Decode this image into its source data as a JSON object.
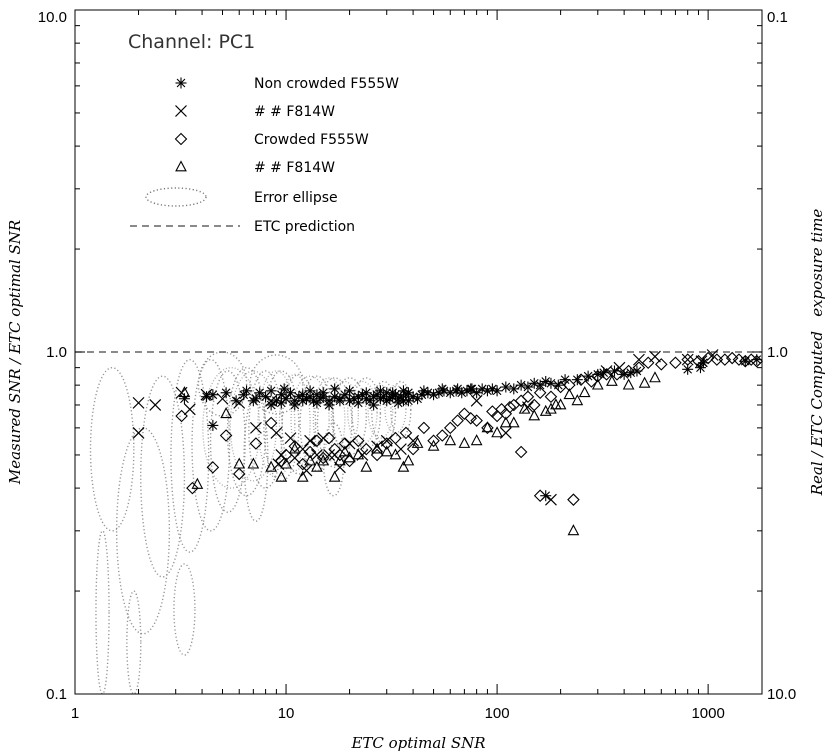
{
  "chart_data": {
    "type": "scatter",
    "title": "Channel: PC1",
    "xlabel": "ETC optimal SNR",
    "ylabel": "Measured SNR / ETC optimal SNR",
    "y2label": "Real / ETC Computed   exposure time",
    "xscale": "log",
    "yscale": "log",
    "xlim": [
      1,
      1800
    ],
    "ylim": [
      0.1,
      10
    ],
    "y2lim": [
      10.0,
      0.1
    ],
    "x_tick_labels": [
      "1",
      "10",
      "100",
      "1000"
    ],
    "y_tick_labels": [
      "0.1",
      "1.0",
      "10.0"
    ],
    "y2_tick_labels": [
      "10.0",
      "1.0",
      "0.1"
    ],
    "grid": false,
    "legend_position": "top-left",
    "legend": [
      {
        "symbol": "asterisk",
        "text": "Non crowded F555W"
      },
      {
        "symbol": "cross",
        "text": "#   #        F814W"
      },
      {
        "symbol": "diamond",
        "text": "Crowded         F555W"
      },
      {
        "symbol": "triangle",
        "text": "#   #        F814W"
      },
      {
        "symbol": "ellipse",
        "text": "Error ellipse"
      },
      {
        "symbol": "dashed",
        "text": "ETC prediction"
      }
    ],
    "reference_line": {
      "y": 1.0,
      "style": "dashed"
    },
    "series": [
      {
        "symbol": "asterisk",
        "x": [
          3.3,
          4.2,
          4.5,
          5.2,
          5.8,
          6.3,
          7,
          7.5,
          8,
          8.5,
          9,
          9.5,
          10,
          10.5,
          11,
          11.5,
          12,
          12.5,
          13,
          13.5,
          14,
          14.5,
          15,
          16,
          17,
          18,
          19,
          20,
          21,
          22,
          23,
          24,
          25,
          26,
          27,
          28,
          29,
          30,
          31,
          32,
          33,
          34,
          35,
          36,
          37,
          38,
          40,
          42,
          44,
          47,
          50,
          53,
          56,
          60,
          64,
          68,
          72,
          76,
          80,
          85,
          90,
          95,
          100,
          110,
          120,
          130,
          140,
          150,
          160,
          170,
          180,
          195,
          210,
          240,
          270,
          300,
          320,
          360,
          400,
          430,
          460,
          800,
          920,
          950,
          1500,
          1700,
          8.5,
          9.5,
          11,
          12,
          14,
          16,
          18,
          22,
          26,
          30,
          34,
          38,
          4.5,
          6.5,
          7.2,
          9.8,
          13,
          15,
          17,
          20,
          24,
          28,
          32,
          36,
          45,
          55,
          65,
          75,
          170
        ],
        "y": [
          0.73,
          0.74,
          0.61,
          0.76,
          0.72,
          0.75,
          0.72,
          0.76,
          0.74,
          0.77,
          0.72,
          0.75,
          0.73,
          0.76,
          0.72,
          0.74,
          0.75,
          0.73,
          0.74,
          0.72,
          0.75,
          0.73,
          0.74,
          0.72,
          0.74,
          0.73,
          0.75,
          0.72,
          0.73,
          0.74,
          0.75,
          0.73,
          0.72,
          0.74,
          0.75,
          0.73,
          0.74,
          0.76,
          0.73,
          0.74,
          0.75,
          0.73,
          0.74,
          0.72,
          0.75,
          0.76,
          0.74,
          0.73,
          0.75,
          0.76,
          0.75,
          0.76,
          0.77,
          0.76,
          0.77,
          0.76,
          0.77,
          0.78,
          0.76,
          0.78,
          0.77,
          0.78,
          0.77,
          0.79,
          0.78,
          0.8,
          0.79,
          0.81,
          0.8,
          0.82,
          0.81,
          0.8,
          0.83,
          0.83,
          0.85,
          0.86,
          0.87,
          0.88,
          0.86,
          0.87,
          0.88,
          0.89,
          0.9,
          0.93,
          0.94,
          0.95,
          0.7,
          0.71,
          0.7,
          0.72,
          0.71,
          0.7,
          0.72,
          0.71,
          0.7,
          0.72,
          0.71,
          0.72,
          0.75,
          0.77,
          0.73,
          0.78,
          0.77,
          0.76,
          0.78,
          0.77,
          0.76,
          0.77,
          0.76,
          0.77,
          0.77,
          0.78,
          0.78,
          0.78,
          0.38
        ]
      },
      {
        "symbol": "cross",
        "x": [
          2.0,
          2.0,
          2.4,
          3.2,
          3.5,
          4.2,
          5.0,
          6.0,
          7.2,
          8.5,
          9.0,
          9.5,
          10,
          10.5,
          11,
          12,
          13,
          14,
          15,
          17,
          20,
          23,
          27,
          30,
          35,
          40,
          80,
          110,
          140,
          180,
          330,
          380,
          470,
          560,
          800,
          930,
          1050,
          18,
          9.2,
          12.5,
          16
        ],
        "y": [
          0.71,
          0.58,
          0.7,
          0.76,
          0.68,
          0.75,
          0.73,
          0.71,
          0.6,
          0.72,
          0.58,
          0.5,
          0.73,
          0.56,
          0.49,
          0.52,
          0.55,
          0.5,
          0.56,
          0.5,
          0.54,
          0.5,
          0.53,
          0.55,
          0.52,
          0.55,
          0.72,
          0.58,
          0.69,
          0.37,
          0.88,
          0.9,
          0.95,
          0.97,
          0.95,
          0.94,
          0.98,
          0.46,
          0.47,
          0.45,
          0.5
        ]
      },
      {
        "symbol": "diamond",
        "x": [
          3.2,
          3.6,
          4.5,
          5.2,
          6.0,
          7.2,
          8.5,
          9.5,
          10,
          11,
          12,
          13,
          14,
          15,
          16,
          17,
          18,
          19,
          20,
          22,
          24,
          27,
          30,
          33,
          37,
          40,
          45,
          50,
          55,
          60,
          65,
          70,
          75,
          80,
          90,
          95,
          100,
          105,
          110,
          115,
          120,
          130,
          140,
          150,
          160,
          180,
          200,
          220,
          250,
          280,
          300,
          330,
          370,
          420,
          470,
          520,
          600,
          700,
          800,
          900,
          1000,
          1100,
          1200,
          1300,
          1400,
          1500,
          1600,
          1700,
          130,
          160,
          230
        ],
        "y": [
          0.65,
          0.4,
          0.46,
          0.57,
          0.44,
          0.54,
          0.62,
          0.48,
          0.5,
          0.53,
          0.47,
          0.51,
          0.55,
          0.49,
          0.56,
          0.52,
          0.5,
          0.54,
          0.48,
          0.55,
          0.52,
          0.5,
          0.54,
          0.56,
          0.58,
          0.52,
          0.6,
          0.55,
          0.57,
          0.6,
          0.63,
          0.66,
          0.64,
          0.63,
          0.6,
          0.67,
          0.65,
          0.68,
          0.66,
          0.69,
          0.7,
          0.72,
          0.74,
          0.7,
          0.76,
          0.74,
          0.79,
          0.8,
          0.83,
          0.82,
          0.85,
          0.86,
          0.86,
          0.88,
          0.9,
          0.93,
          0.92,
          0.93,
          0.95,
          0.94,
          0.96,
          0.95,
          0.95,
          0.96,
          0.95,
          0.94,
          0.95,
          0.94,
          0.51,
          0.38,
          0.37
        ]
      },
      {
        "symbol": "triangle",
        "x": [
          3.3,
          3.8,
          5.2,
          6.0,
          7.0,
          8.5,
          9.5,
          10,
          11,
          12,
          13,
          14,
          15,
          17,
          18,
          19,
          20,
          22,
          24,
          27,
          30,
          33,
          36,
          38,
          42,
          50,
          60,
          70,
          80,
          90,
          100,
          110,
          120,
          135,
          150,
          170,
          180,
          190,
          200,
          220,
          240,
          260,
          300,
          350,
          420,
          500,
          560,
          230
        ],
        "y": [
          0.76,
          0.41,
          0.66,
          0.47,
          0.47,
          0.46,
          0.43,
          0.47,
          0.52,
          0.43,
          0.48,
          0.46,
          0.48,
          0.43,
          0.48,
          0.51,
          0.49,
          0.5,
          0.46,
          0.52,
          0.51,
          0.5,
          0.46,
          0.48,
          0.54,
          0.53,
          0.55,
          0.54,
          0.55,
          0.6,
          0.58,
          0.62,
          0.62,
          0.68,
          0.65,
          0.67,
          0.68,
          0.7,
          0.7,
          0.75,
          0.72,
          0.76,
          0.8,
          0.82,
          0.8,
          0.81,
          0.84,
          0.3
        ]
      }
    ]
  }
}
